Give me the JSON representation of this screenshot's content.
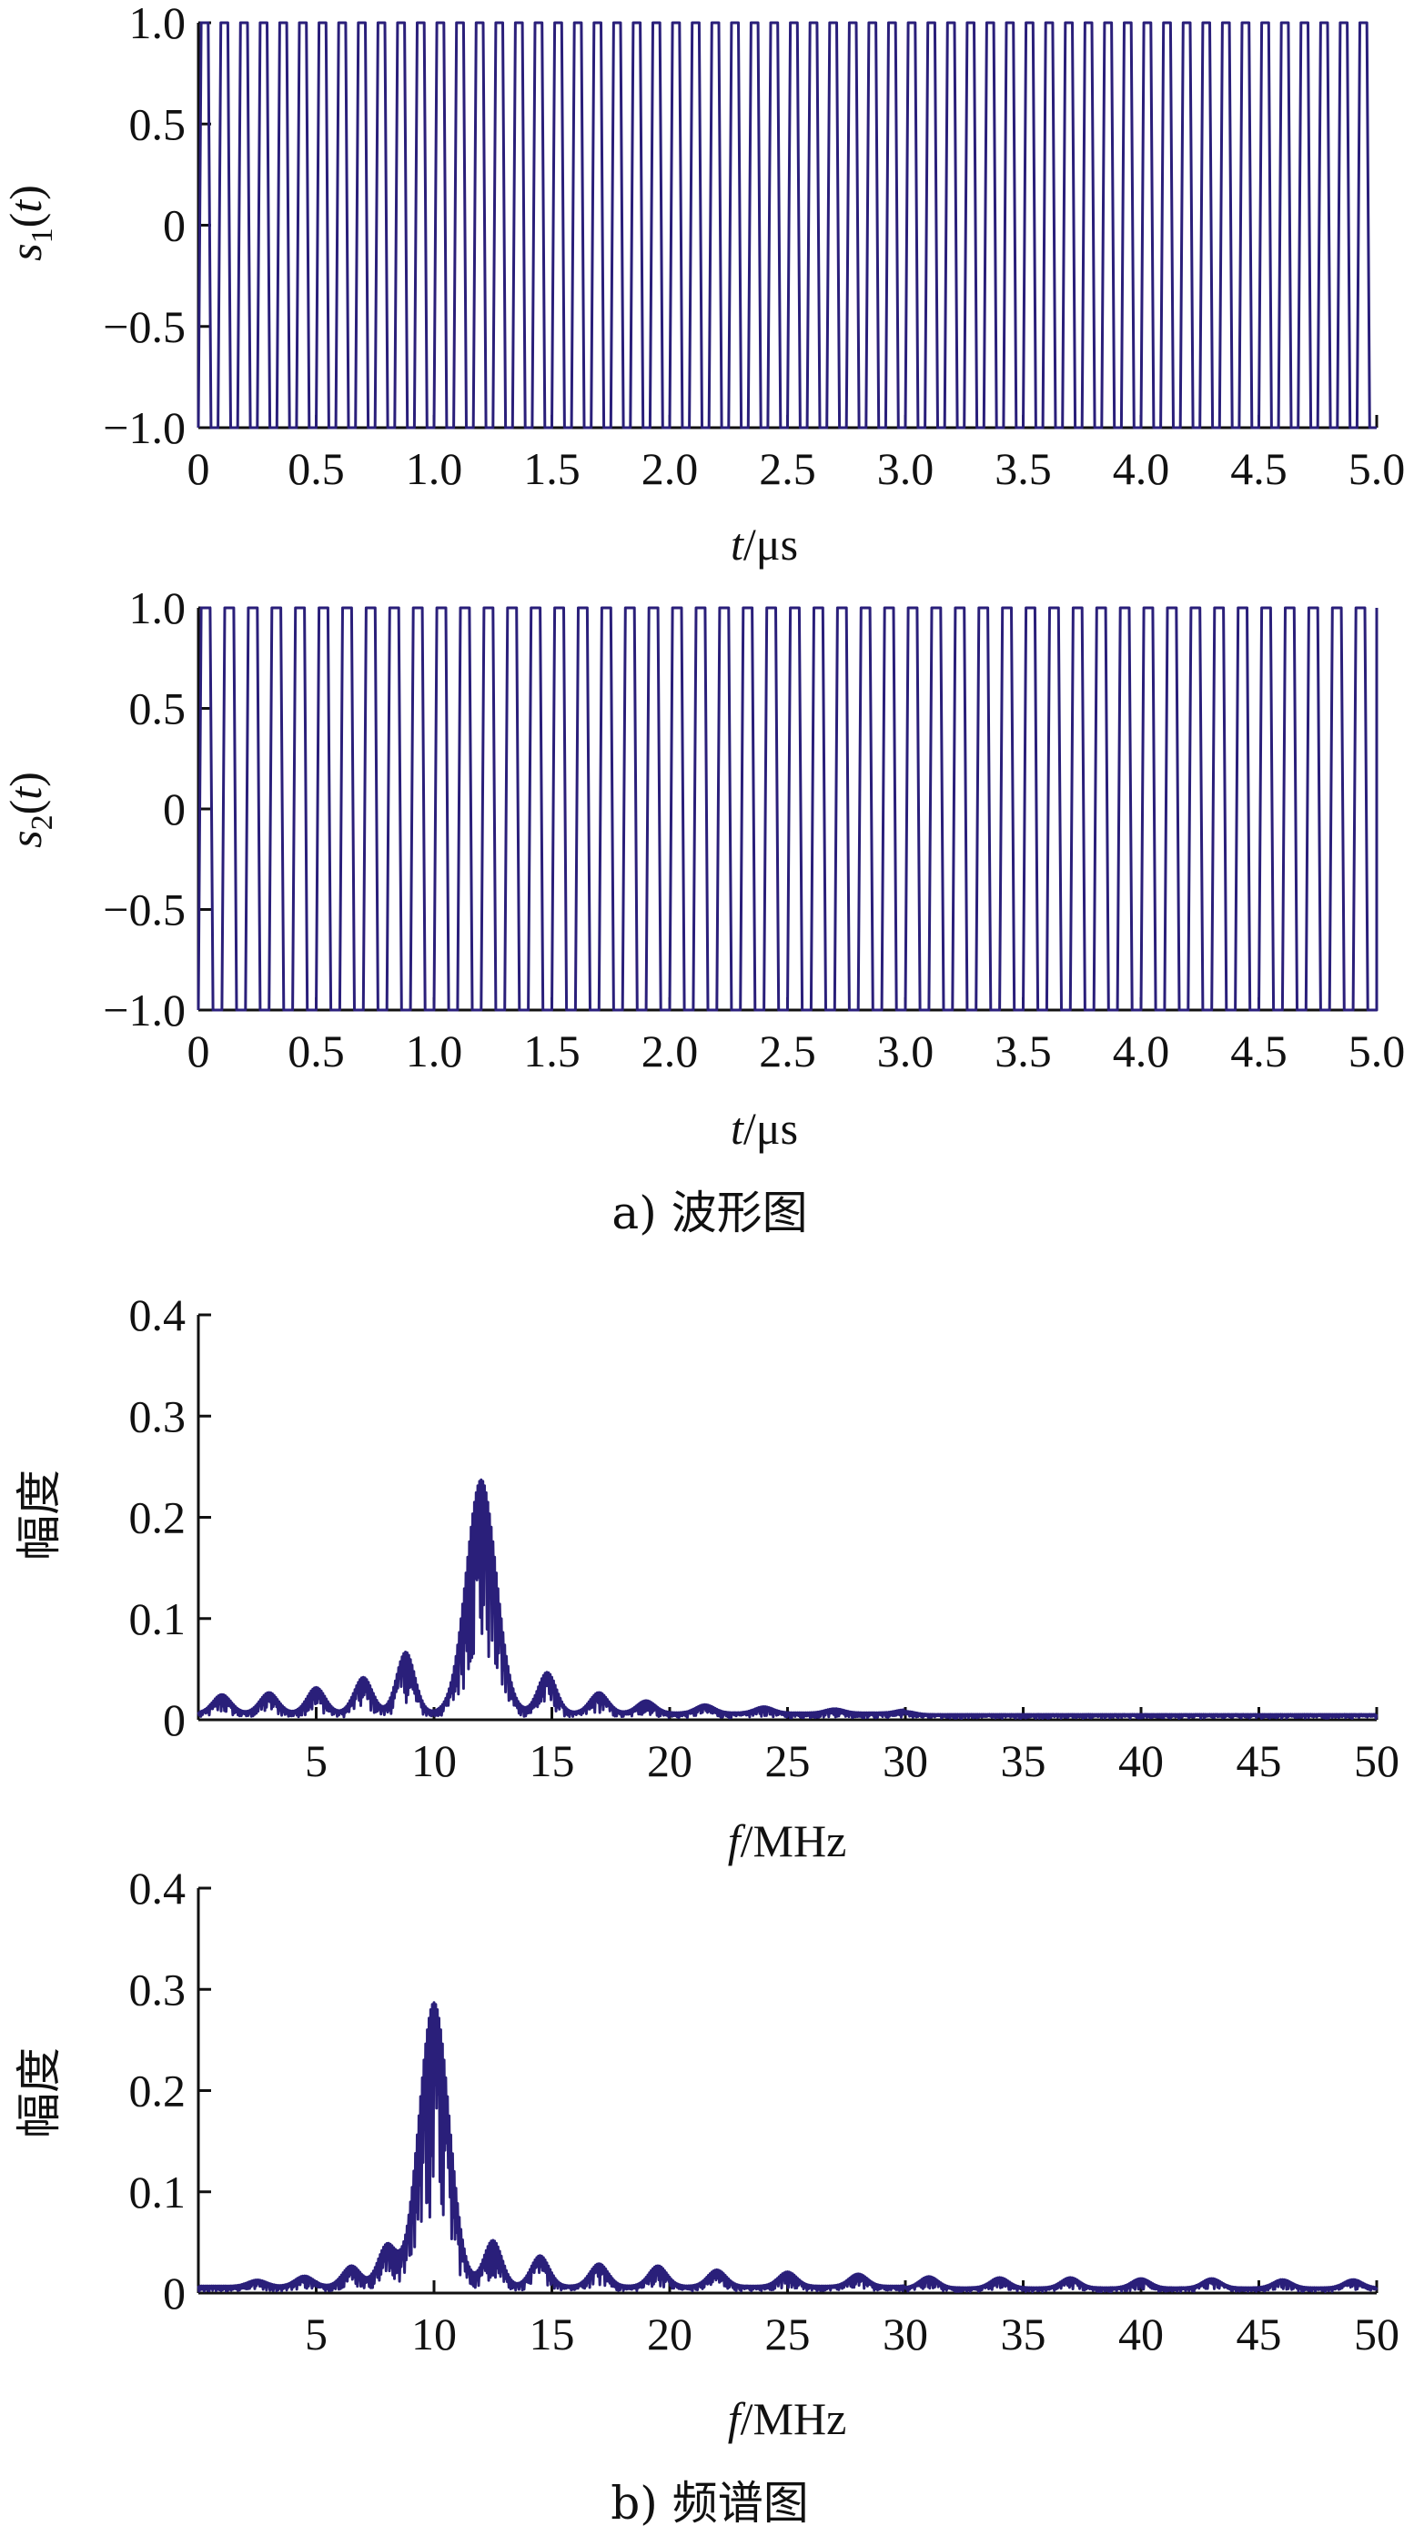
{
  "captions": {
    "a": "a) 波形图",
    "b": "b) 频谱图"
  },
  "colors": {
    "series": "#2a1f7a",
    "axis": "#111111"
  },
  "chart_data": [
    {
      "type": "line",
      "ylabel_base": "s",
      "ylabel_sub": "1",
      "ylabel_arg": "t",
      "xlabel_var": "t",
      "xlabel_unit": "/μs",
      "xlim": [
        0,
        5.0
      ],
      "ylim": [
        -1.0,
        1.0
      ],
      "xticks": [
        "0",
        "0.5",
        "1.0",
        "1.5",
        "2.0",
        "2.5",
        "3.0",
        "3.5",
        "4.0",
        "4.5",
        "5.0"
      ],
      "yticks": [
        "1.0",
        "0.5",
        "0",
        "−0.5",
        "−1.0"
      ],
      "signal": {
        "kind": "square_carrier",
        "freq_mhz": 12.0,
        "amplitude": 1.0,
        "duration_us": 5.0
      }
    },
    {
      "type": "line",
      "ylabel_base": "s",
      "ylabel_sub": "2",
      "ylabel_arg": "t",
      "xlabel_var": "t",
      "xlabel_unit": "/μs",
      "xlim": [
        0,
        5.0
      ],
      "ylim": [
        -1.0,
        1.0
      ],
      "xticks": [
        "0",
        "0.5",
        "1.0",
        "1.5",
        "2.0",
        "2.5",
        "3.0",
        "3.5",
        "4.0",
        "4.5",
        "5.0"
      ],
      "yticks": [
        "1.0",
        "0.5",
        "0",
        "−0.5",
        "−1.0"
      ],
      "signal": {
        "kind": "square_carrier",
        "freq_mhz": 10.0,
        "amplitude": 1.0,
        "duration_us": 5.0
      }
    },
    {
      "type": "line",
      "ylabel": "幅度",
      "xlabel_var": "f",
      "xlabel_unit": "/MHz",
      "xlim": [
        0,
        50
      ],
      "ylim": [
        0,
        0.4
      ],
      "xticks": [
        "5",
        "10",
        "15",
        "20",
        "25",
        "30",
        "35",
        "40",
        "45",
        "50"
      ],
      "yticks": [
        "0.4",
        "0.3",
        "0.2",
        "0.1",
        "0"
      ],
      "spectrum": {
        "center_mhz": 12.0,
        "peak": 0.23,
        "sidelobes": [
          {
            "f": 1.0,
            "a": 0.018
          },
          {
            "f": 3.0,
            "a": 0.02
          },
          {
            "f": 5.0,
            "a": 0.025
          },
          {
            "f": 7.0,
            "a": 0.035
          },
          {
            "f": 8.8,
            "a": 0.06
          },
          {
            "f": 14.8,
            "a": 0.04
          },
          {
            "f": 17.0,
            "a": 0.02
          },
          {
            "f": 19.0,
            "a": 0.012
          },
          {
            "f": 21.5,
            "a": 0.008
          },
          {
            "f": 24.0,
            "a": 0.006
          },
          {
            "f": 27.0,
            "a": 0.004
          },
          {
            "f": 30.0,
            "a": 0.003
          }
        ]
      }
    },
    {
      "type": "line",
      "ylabel": "幅度",
      "xlabel_var": "f",
      "xlabel_unit": "/MHz",
      "xlim": [
        0,
        50
      ],
      "ylim": [
        0,
        0.4
      ],
      "xticks": [
        "5",
        "10",
        "15",
        "20",
        "25",
        "30",
        "35",
        "40",
        "45",
        "50"
      ],
      "yticks": [
        "0.4",
        "0.3",
        "0.2",
        "0.1",
        "0"
      ],
      "spectrum": {
        "center_mhz": 10.0,
        "peak": 0.28,
        "sidelobes": [
          {
            "f": 2.5,
            "a": 0.006
          },
          {
            "f": 4.5,
            "a": 0.01
          },
          {
            "f": 6.5,
            "a": 0.02
          },
          {
            "f": 8.0,
            "a": 0.04
          },
          {
            "f": 12.5,
            "a": 0.045
          },
          {
            "f": 14.5,
            "a": 0.03
          },
          {
            "f": 17.0,
            "a": 0.022
          },
          {
            "f": 19.5,
            "a": 0.02
          },
          {
            "f": 22.0,
            "a": 0.016
          },
          {
            "f": 25.0,
            "a": 0.014
          },
          {
            "f": 28.0,
            "a": 0.012
          },
          {
            "f": 31.0,
            "a": 0.011
          },
          {
            "f": 34.0,
            "a": 0.01
          },
          {
            "f": 37.0,
            "a": 0.01
          },
          {
            "f": 40.0,
            "a": 0.009
          },
          {
            "f": 43.0,
            "a": 0.009
          },
          {
            "f": 46.0,
            "a": 0.008
          },
          {
            "f": 49.0,
            "a": 0.008
          }
        ]
      }
    }
  ]
}
